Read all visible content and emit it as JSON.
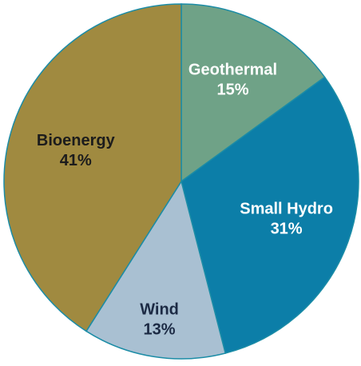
{
  "chart_data": {
    "type": "pie",
    "categories": [
      "Geothermal",
      "Small Hydro",
      "Wind",
      "Bioenergy"
    ],
    "values": [
      15,
      31,
      13,
      41
    ],
    "value_labels": [
      "15%",
      "31%",
      "13%",
      "41%"
    ],
    "colors": [
      "#6fa287",
      "#0c7ea8",
      "#a9c0d2",
      "#a08a40"
    ],
    "label_colors": [
      "#ffffff",
      "#ffffff",
      "#1c2a44",
      "#1c1c1c"
    ]
  }
}
